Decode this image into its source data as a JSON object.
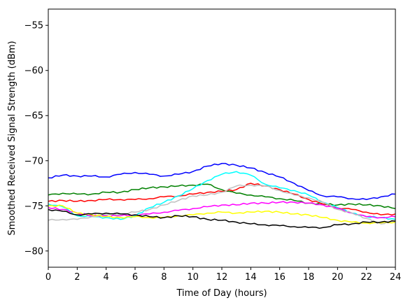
{
  "chart_data": {
    "type": "line",
    "title": "",
    "xlabel": "Time of Day (hours)",
    "ylabel": "Smoothed Received Signal Strength (dBm)",
    "xlim": [
      0,
      24
    ],
    "ylim": [
      -81.8,
      -53.2
    ],
    "xticks": [
      0,
      2,
      4,
      6,
      8,
      10,
      12,
      14,
      16,
      18,
      20,
      22,
      24
    ],
    "yticks": [
      -55,
      -60,
      -65,
      -70,
      -75,
      -80
    ],
    "ytick_labels": [
      "−55",
      "−60",
      "−65",
      "−70",
      "−75",
      "−80"
    ],
    "grid": false,
    "x": [
      0,
      1,
      2,
      3,
      4,
      5,
      6,
      7,
      8,
      9,
      10,
      11,
      12,
      13,
      14,
      15,
      16,
      17,
      18,
      19,
      20,
      21,
      22,
      23,
      24
    ],
    "series": [
      {
        "name": "blue",
        "color": "#0000ff",
        "values": [
          -71.9,
          -71.6,
          -71.7,
          -71.7,
          -71.8,
          -71.5,
          -71.3,
          -71.5,
          -71.7,
          -71.5,
          -71.2,
          -70.6,
          -70.3,
          -70.5,
          -70.8,
          -71.3,
          -71.8,
          -72.5,
          -73.3,
          -73.9,
          -74.0,
          -74.2,
          -74.3,
          -74.0,
          -73.7
        ]
      },
      {
        "name": "green",
        "color": "#008000",
        "values": [
          -73.8,
          -73.6,
          -73.7,
          -73.7,
          -73.5,
          -73.5,
          -73.2,
          -73.0,
          -72.9,
          -72.8,
          -72.7,
          -72.6,
          -73.2,
          -73.6,
          -73.8,
          -74.0,
          -74.2,
          -74.4,
          -74.7,
          -74.8,
          -74.9,
          -74.8,
          -74.9,
          -75.0,
          -75.3
        ]
      },
      {
        "name": "red",
        "color": "#ff0000",
        "values": [
          -74.5,
          -74.4,
          -74.5,
          -74.4,
          -74.3,
          -74.3,
          -74.3,
          -74.2,
          -74.0,
          -73.9,
          -73.7,
          -73.5,
          -73.4,
          -73.2,
          -72.5,
          -72.8,
          -73.2,
          -73.7,
          -74.3,
          -74.8,
          -75.2,
          -75.4,
          -75.7,
          -76.0,
          -75.9
        ]
      },
      {
        "name": "cyan",
        "color": "#00ffff",
        "values": [
          -74.8,
          -75.1,
          -76.1,
          -76.2,
          -76.3,
          -76.5,
          -76.1,
          -75.2,
          -74.6,
          -73.9,
          -73.1,
          -72.2,
          -71.5,
          -71.2,
          -71.6,
          -72.6,
          -73.0,
          -73.3,
          -73.8,
          -74.6,
          -75.2,
          -75.8,
          -76.2,
          -76.3,
          -76.5
        ]
      },
      {
        "name": "magenta",
        "color": "#ff00ff",
        "values": [
          -75.2,
          -75.4,
          -75.8,
          -76.1,
          -76.1,
          -76.1,
          -76.0,
          -75.9,
          -75.7,
          -75.5,
          -75.3,
          -75.1,
          -74.9,
          -74.9,
          -74.7,
          -74.7,
          -74.6,
          -74.6,
          -74.7,
          -74.9,
          -75.3,
          -75.8,
          -76.2,
          -76.3,
          -76.2
        ]
      },
      {
        "name": "silver",
        "color": "#c0c0c0",
        "values": [
          -76.6,
          -76.5,
          -76.5,
          -76.2,
          -76.0,
          -75.9,
          -75.7,
          -75.4,
          -74.9,
          -74.4,
          -73.9,
          -73.8,
          -73.5,
          -72.8,
          -72.7,
          -72.8,
          -73.3,
          -73.8,
          -74.1,
          -74.6,
          -75.4,
          -75.8,
          -76.4,
          -77.0,
          -76.6
        ]
      },
      {
        "name": "yellow",
        "color": "#ffff00",
        "values": [
          -75.0,
          -75.0,
          -75.8,
          -76.0,
          -76.2,
          -76.3,
          -76.2,
          -76.3,
          -76.3,
          -76.1,
          -76.0,
          -75.8,
          -75.7,
          -75.8,
          -75.7,
          -75.6,
          -75.7,
          -75.9,
          -76.0,
          -76.3,
          -76.6,
          -76.8,
          -76.9,
          -76.9,
          -76.8
        ]
      },
      {
        "name": "black",
        "color": "#000000",
        "values": [
          -75.4,
          -75.6,
          -76.0,
          -75.9,
          -75.8,
          -75.9,
          -76.0,
          -76.2,
          -76.3,
          -76.1,
          -76.2,
          -76.5,
          -76.6,
          -76.8,
          -77.0,
          -77.1,
          -77.2,
          -77.3,
          -77.4,
          -77.4,
          -77.1,
          -77.0,
          -76.8,
          -76.8,
          -76.7
        ]
      }
    ]
  }
}
